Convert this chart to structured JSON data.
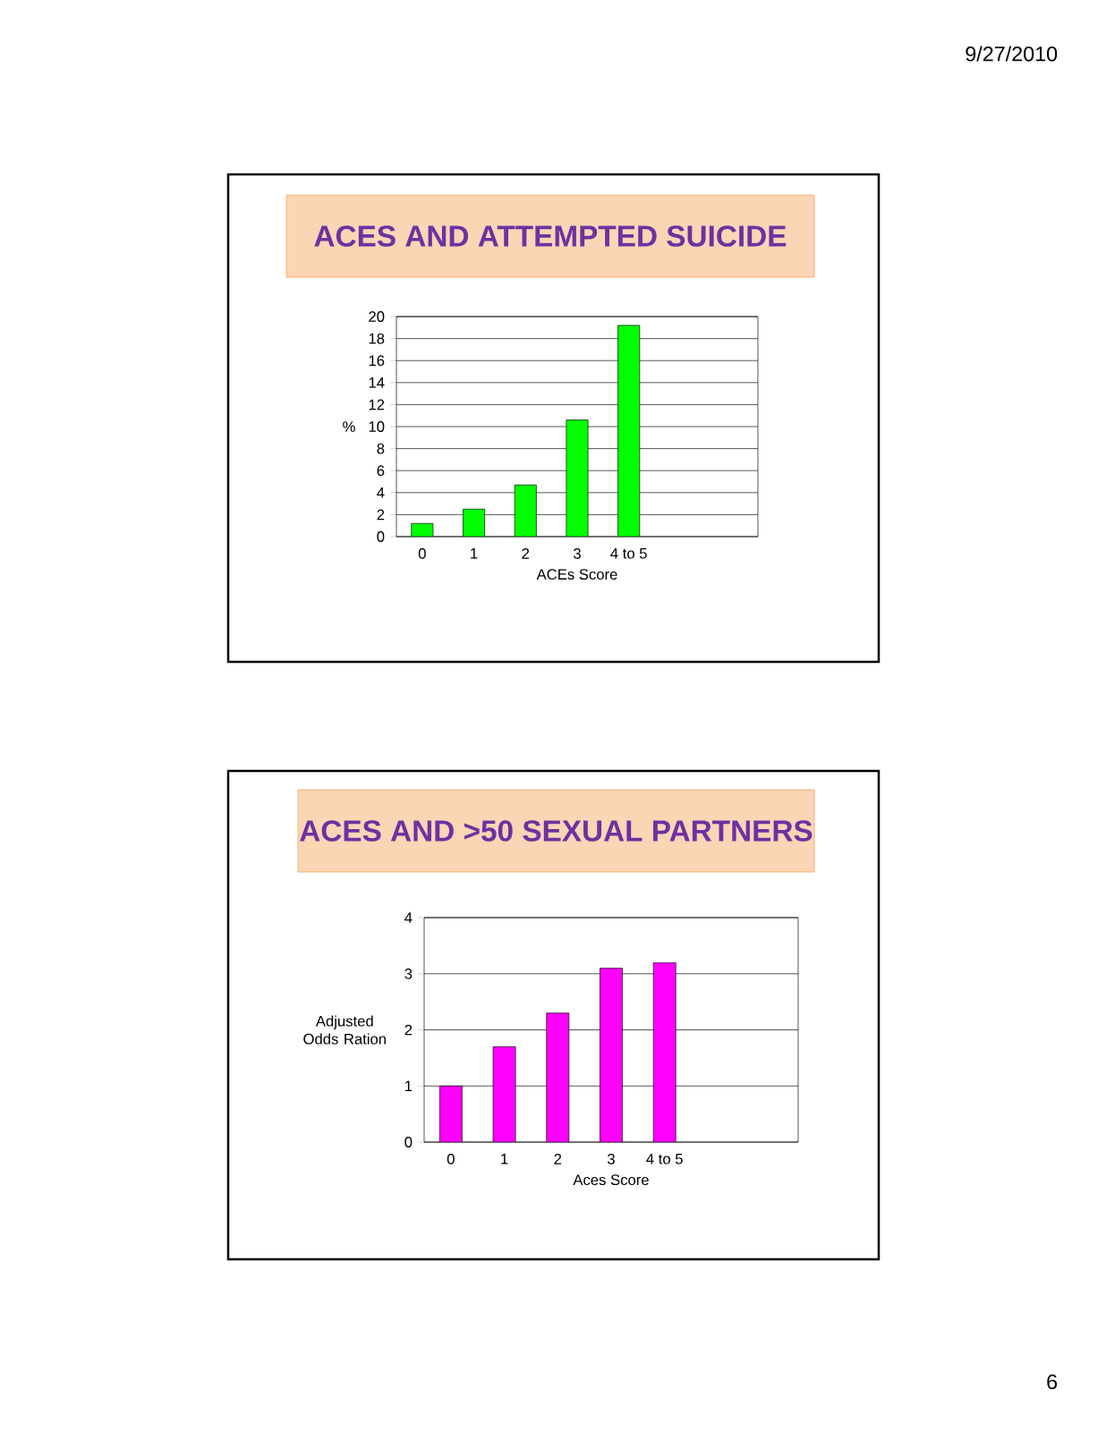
{
  "chart_data": [
    {
      "type": "bar",
      "title": "ACES AND ATTEMPTED SUICIDE",
      "xlabel": "ACEs Score",
      "ylabel": "%",
      "categories": [
        "0",
        "1",
        "2",
        "3",
        "4 to 5",
        null,
        null
      ],
      "values": [
        1.2,
        2.5,
        4.7,
        10.6,
        19.2,
        null,
        null
      ],
      "color": "#00ff00",
      "ylim": [
        0,
        20
      ],
      "yticks": [
        0,
        2,
        4,
        6,
        8,
        10,
        12,
        14,
        16,
        18,
        20
      ],
      "grid": "y",
      "annotations": [
        "9/27/2010"
      ]
    },
    {
      "type": "bar",
      "title": "ACES AND >50 SEXUAL PARTNERS",
      "xlabel": "Aces Score",
      "ylabel": "Adjusted Odds Ration",
      "categories": [
        "0",
        "1",
        "2",
        "3",
        "4 to 5",
        null,
        null
      ],
      "values": [
        1.0,
        1.7,
        2.3,
        3.1,
        3.2,
        null,
        null
      ],
      "color": "#ff00ff",
      "ylim": [
        0,
        4
      ],
      "yticks": [
        0,
        1,
        2,
        3,
        4
      ],
      "grid": "y",
      "annotations": [
        "6"
      ]
    }
  ]
}
